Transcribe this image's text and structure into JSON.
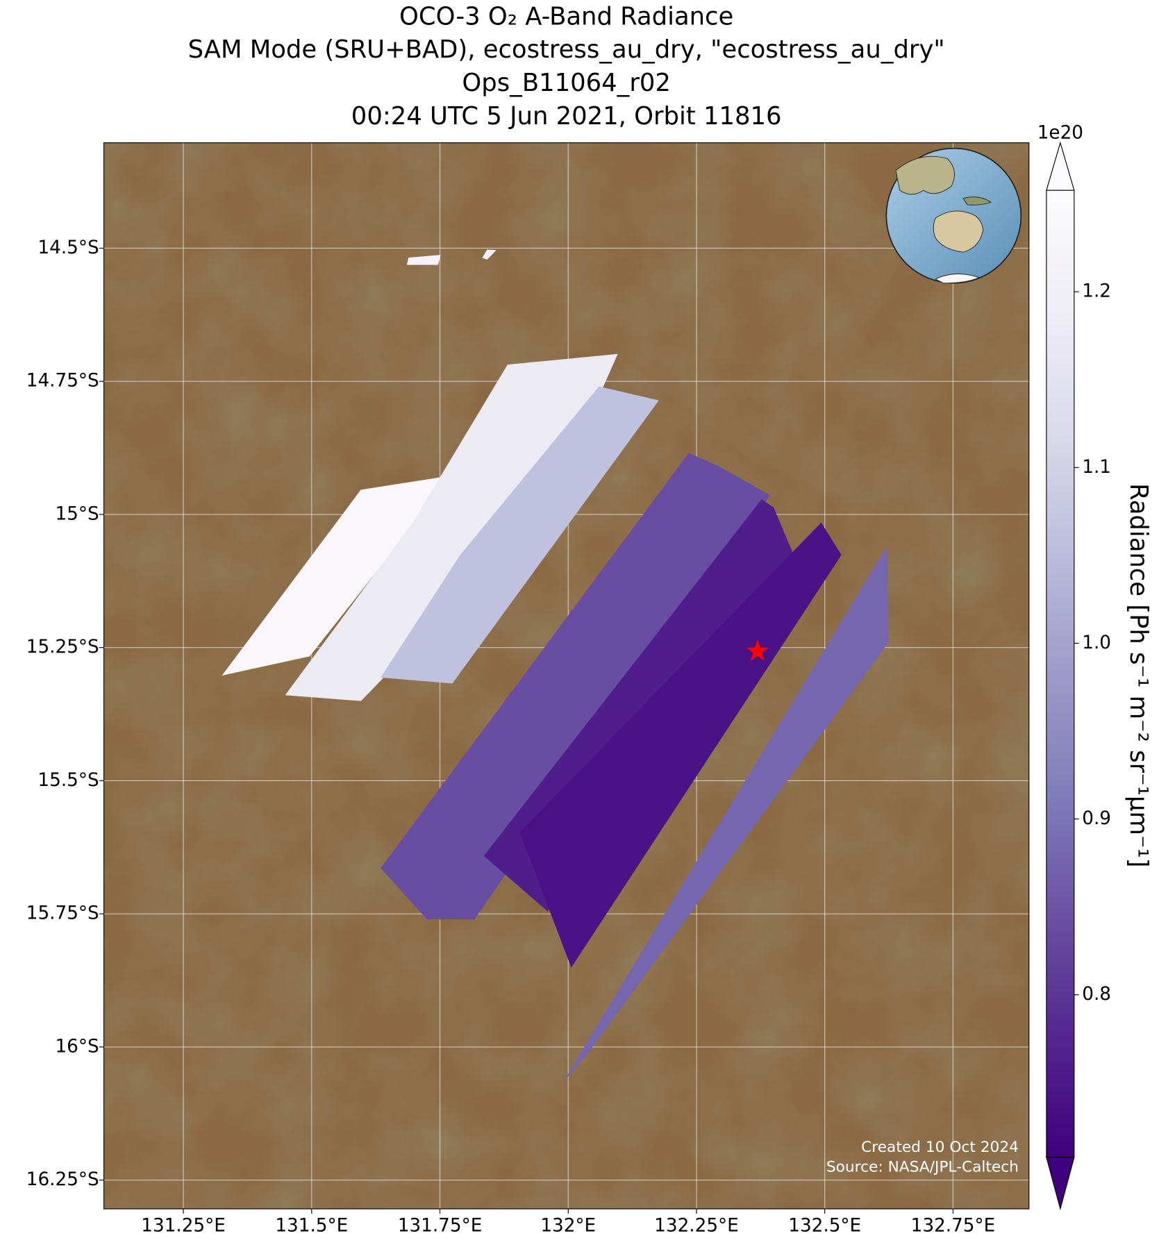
{
  "chart_data": {
    "type": "map",
    "title": [
      "OCO-3 O₂ A-Band Radiance",
      "SAM Mode (SRU+BAD), ecostress_au_dry, \"ecostress_au_dry\"",
      "Ops_B11064_r02",
      "00:24 UTC 5 Jun 2021, Orbit 11816"
    ],
    "xlim": [
      131.095,
      132.898
    ],
    "ylim": [
      -16.304,
      -14.302
    ],
    "xticks": [
      {
        "value": 131.25,
        "label": "131.25°E"
      },
      {
        "value": 131.5,
        "label": "131.5°E"
      },
      {
        "value": 131.75,
        "label": "131.75°E"
      },
      {
        "value": 132,
        "label": "132°E"
      },
      {
        "value": 132.25,
        "label": "132.25°E"
      },
      {
        "value": 132.5,
        "label": "132.5°E"
      },
      {
        "value": 132.75,
        "label": "132.75°E"
      }
    ],
    "yticks": [
      {
        "value": -14.5,
        "label": "14.5°S"
      },
      {
        "value": -14.75,
        "label": "14.75°S"
      },
      {
        "value": -15,
        "label": "15°S"
      },
      {
        "value": -15.25,
        "label": "15.25°S"
      },
      {
        "value": -15.5,
        "label": "15.5°S"
      },
      {
        "value": -15.75,
        "label": "15.75°S"
      },
      {
        "value": -16,
        "label": "16°S"
      },
      {
        "value": -16.25,
        "label": "16.25°S"
      }
    ],
    "grid": true,
    "colorbar": {
      "label": "Radiance [Ph s⁻¹ m⁻² sr⁻¹μm⁻¹]",
      "offset_label": "1e20",
      "clim": [
        0.7075,
        1.2577
      ],
      "ticks": [
        0.8,
        0.9,
        {
          "value": 1,
          "label": "1.0"
        },
        1.1,
        1.2
      ],
      "colormap": [
        "#3f007d",
        "#54278f",
        "#6a51a3",
        "#807dba",
        "#9e9ac8",
        "#bcbddc",
        "#dadaeb",
        "#efedf5",
        "#fcfbfd"
      ]
    },
    "swaths": [
      {
        "lon": [
          131.326,
          131.596,
          131.774,
          131.496
        ],
        "lat": [
          -15.302,
          -14.954,
          -14.927,
          -15.266
        ],
        "value": 1.24
      },
      {
        "lon": [
          131.449,
          131.697,
          131.882,
          132.096,
          132.068,
          131.782,
          131.596
        ],
        "lat": [
          -15.339,
          -15.016,
          -14.719,
          -14.699,
          -14.76,
          -15.165,
          -15.35
        ],
        "value": 1.18
      },
      {
        "lon": [
          131.635,
          131.79,
          132.06,
          132.176,
          131.774
        ],
        "lat": [
          -15.306,
          -15.076,
          -14.76,
          -14.786,
          -15.317
        ],
        "value": 1.06
      },
      {
        "lon": [
          131.635,
          132.235,
          132.292,
          132.393,
          131.817,
          131.725
        ],
        "lat": [
          -15.664,
          -14.885,
          -14.909,
          -14.964,
          -15.76,
          -15.76
        ],
        "value": 0.84
      },
      {
        "lon": [
          131.836,
          132.377,
          132.4,
          132.439,
          131.96
        ],
        "lat": [
          -15.641,
          -14.972,
          -14.987,
          -15.076,
          -15.745
        ],
        "value": 0.76
      },
      {
        "lon": [
          131.906,
          132.493,
          132.532,
          132.006
        ],
        "lat": [
          -15.597,
          -15.016,
          -15.076,
          -15.85
        ],
        "value": 0.74
      },
      {
        "lon": [
          131.991,
          132.621,
          132.624,
          132.037
        ],
        "lat": [
          -16.065,
          -15.061,
          -15.24,
          -16.013
        ],
        "value": 0.88
      },
      {
        "lon": [
          131.689,
          131.751,
          131.746,
          131.686
        ],
        "lat": [
          -14.518,
          -14.513,
          -14.531,
          -14.531
        ],
        "value": 1.22
      },
      {
        "lon": [
          131.833,
          131.842,
          131.859,
          131.842
        ],
        "lat": [
          -14.518,
          -14.503,
          -14.504,
          -14.521
        ],
        "value": 1.22
      }
    ],
    "marker": {
      "lon": 132.369,
      "lat": -15.257,
      "color": "#ff0000"
    },
    "annotations": [
      "Created 10 Oct 2024",
      "Source: NASA/JPL-Caltech"
    ]
  }
}
